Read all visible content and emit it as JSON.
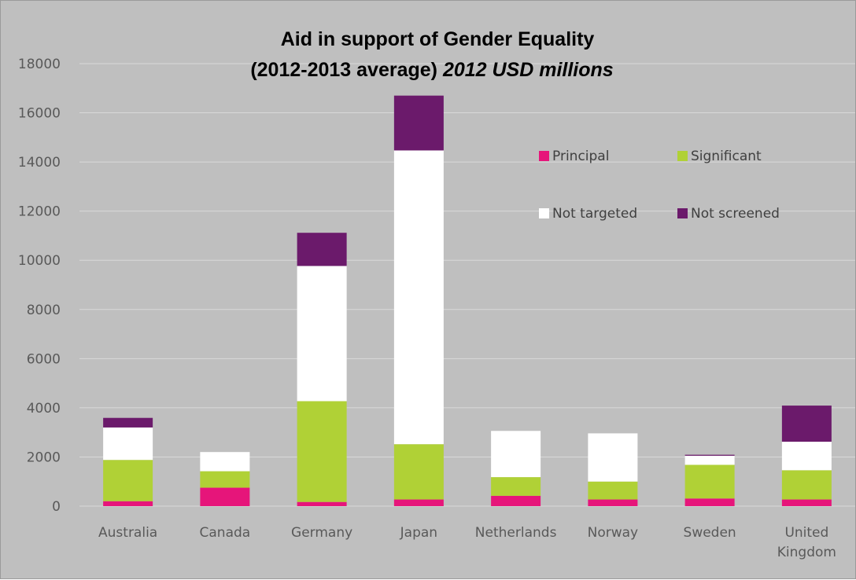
{
  "chart_data": {
    "type": "bar",
    "stacked": true,
    "title": "Aid in support of Gender Equality",
    "title_line2_prefix": "(2012-2013 average)",
    "title_line2_italic": "2012 USD millions",
    "categories": [
      "Australia",
      "Canada",
      "Germany",
      "Japan",
      "Netherlands",
      "Norway",
      "Sweden",
      "United Kingdom"
    ],
    "category_lines": [
      [
        "Australia"
      ],
      [
        "Canada"
      ],
      [
        "Germany"
      ],
      [
        "Japan"
      ],
      [
        "Netherlands"
      ],
      [
        "Norway"
      ],
      [
        "Sweden"
      ],
      [
        "United",
        "Kingdom"
      ]
    ],
    "series": [
      {
        "name": "Principal",
        "color": "#e6157a",
        "values": [
          200,
          750,
          170,
          270,
          420,
          270,
          310,
          270
        ]
      },
      {
        "name": "Significant",
        "color": "#b0d136",
        "values": [
          1680,
          670,
          4100,
          2250,
          760,
          730,
          1370,
          1190
        ]
      },
      {
        "name": "Not targeted",
        "color": "#ffffff",
        "values": [
          1320,
          780,
          5500,
          11950,
          1880,
          1960,
          370,
          1160
        ]
      },
      {
        "name": "Not screened",
        "color": "#6b1a6b",
        "values": [
          390,
          0,
          1350,
          2230,
          0,
          0,
          40,
          1470
        ]
      }
    ],
    "ylim": [
      0,
      18000
    ],
    "yticks": [
      0,
      2000,
      4000,
      6000,
      8000,
      10000,
      12000,
      14000,
      16000,
      18000
    ],
    "grid": true,
    "legend_position": "top-right",
    "xlabel": "",
    "ylabel": ""
  }
}
